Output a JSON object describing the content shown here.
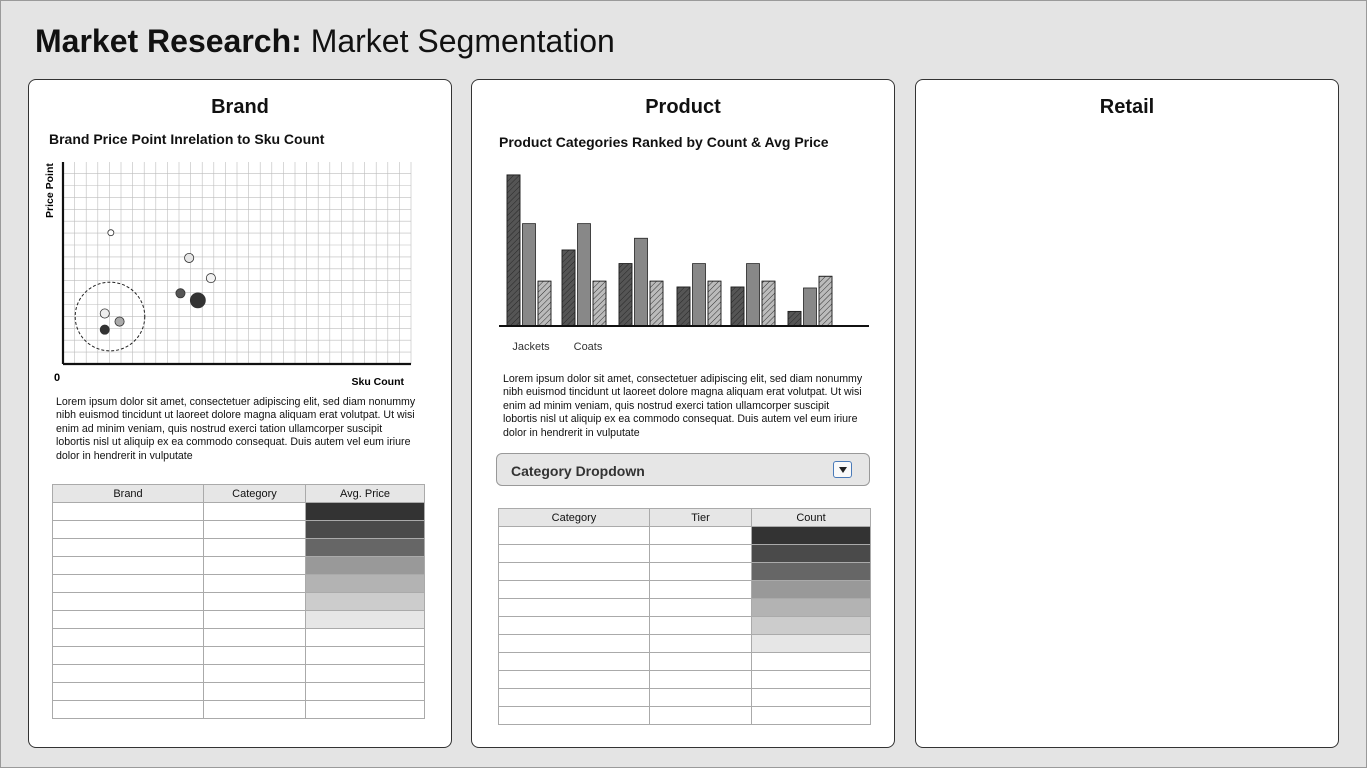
{
  "header": {
    "title_bold": "Market Research:",
    "title_rest": "Market Segmentation"
  },
  "brand": {
    "panel_title": "Brand",
    "chart": {
      "title": "Brand Price Point Inrelation to Sku Count",
      "ylabel": "Price Point",
      "xlabel": "Sku Count",
      "origin_label": "0"
    },
    "lorem": "Lorem ipsum dolor sit amet, consectetuer adipiscing elit, sed diam nonummy nibh euismod tincidunt ut laoreet dolore magna aliquam erat volutpat. Ut wisi enim ad minim veniam, quis nostrud exerci tation ullamcorper suscipit lobortis nisl ut aliquip ex ea commodo consequat. Duis autem vel eum iriure dolor in hendrerit in vulputate",
    "table": {
      "headers": [
        "Brand",
        "Category",
        "Avg. Price"
      ],
      "row_count": 12,
      "heat_colors": [
        "#333333",
        "#4a4a4a",
        "#666666",
        "#999999",
        "#b3b3b3",
        "#cccccc",
        "#e6e6e6"
      ]
    }
  },
  "product": {
    "panel_title": "Product",
    "chart": {
      "title": "Product Categories Ranked by Count & Avg Price",
      "tick_labels": [
        "Jackets",
        "Coats"
      ]
    },
    "lorem": "Lorem ipsum dolor sit amet, consectetuer adipiscing elit, sed diam nonummy nibh euismod tincidunt ut laoreet dolore magna aliquam erat volutpat. Ut wisi enim ad minim veniam, quis nostrud exerci tation ullamcorper suscipit lobortis nisl ut aliquip ex ea commodo consequat. Duis autem vel eum iriure dolor in hendrerit in vulputate",
    "dropdown": {
      "label": "Category Dropdown",
      "icon": "chevron-down-icon"
    },
    "table": {
      "headers": [
        "Category",
        "Tier",
        "Count"
      ],
      "row_count": 11,
      "heat_colors": [
        "#333333",
        "#4a4a4a",
        "#666666",
        "#999999",
        "#b3b3b3",
        "#cccccc",
        "#e6e6e6"
      ]
    }
  },
  "retail": {
    "panel_title": "Retail"
  },
  "chart_data": [
    {
      "type": "scatter",
      "title": "Brand Price Point Inrelation to Sku Count",
      "xlabel": "Sku Count",
      "ylabel": "Price Point",
      "xlim": [
        0,
        40
      ],
      "ylim": [
        0,
        20
      ],
      "grid": true,
      "points": [
        {
          "x": 5.5,
          "y": 13,
          "size": "small",
          "fill": "#ffffff"
        },
        {
          "x": 14.5,
          "y": 10.5,
          "size": "medium",
          "fill": "#e6e6e6"
        },
        {
          "x": 17,
          "y": 8.5,
          "size": "medium",
          "fill": "#f2f2f2"
        },
        {
          "x": 13.5,
          "y": 7,
          "size": "medium",
          "fill": "#555555"
        },
        {
          "x": 15.5,
          "y": 6.3,
          "size": "large",
          "fill": "#333333"
        },
        {
          "x": 4.8,
          "y": 5,
          "size": "medium",
          "fill": "#eeeeee"
        },
        {
          "x": 6.5,
          "y": 4.2,
          "size": "medium",
          "fill": "#aaaaaa"
        },
        {
          "x": 4.8,
          "y": 3.4,
          "size": "medium",
          "fill": "#333333"
        }
      ],
      "highlight": {
        "cx": 5.4,
        "cy": 4.7,
        "rx": 4,
        "ry": 3.4
      }
    },
    {
      "type": "bar",
      "title": "Product Categories Ranked by Count & Avg Price",
      "categories": [
        "Jackets",
        "Coats",
        "",
        "",
        "",
        ""
      ],
      "ylim": [
        0,
        160
      ],
      "series": [
        {
          "values": [
            155,
            78,
            64,
            40,
            40,
            15
          ],
          "color": "#555555"
        },
        {
          "values": [
            105,
            105,
            90,
            64,
            64,
            39
          ],
          "color": "#888888"
        },
        {
          "values": [
            46,
            46,
            46,
            46,
            46,
            51
          ],
          "color": "#bbbbbb"
        }
      ]
    }
  ]
}
